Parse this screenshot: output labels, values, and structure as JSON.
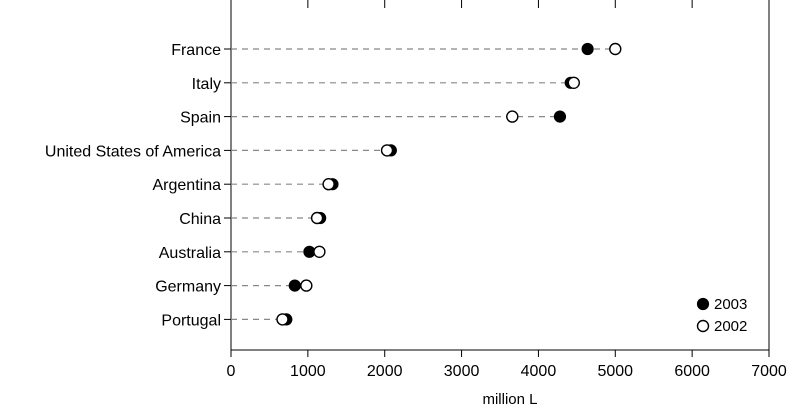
{
  "chart_data": {
    "type": "scatter",
    "subtype": "dot-plot",
    "title": "",
    "xlabel": "million L",
    "ylabel": "",
    "xlim": [
      0,
      7000
    ],
    "xticks": [
      "0",
      "1000",
      "2000",
      "3000",
      "4000",
      "5000",
      "6000",
      "7000"
    ],
    "grid": false,
    "legend_position": "bottom-right",
    "categories": [
      "France",
      "Italy",
      "Spain",
      "United States of America",
      "Argentina",
      "China",
      "Australia",
      "Germany",
      "Portugal"
    ],
    "series": [
      {
        "name": "2003",
        "marker": "filled-circle",
        "color": "#000000",
        "values": [
          4640,
          4420,
          4280,
          2080,
          1320,
          1160,
          1020,
          830,
          720
        ]
      },
      {
        "name": "2002",
        "marker": "open-circle",
        "color": "#000000",
        "values": [
          5000,
          4460,
          3660,
          2030,
          1270,
          1120,
          1150,
          980,
          670
        ]
      }
    ]
  }
}
